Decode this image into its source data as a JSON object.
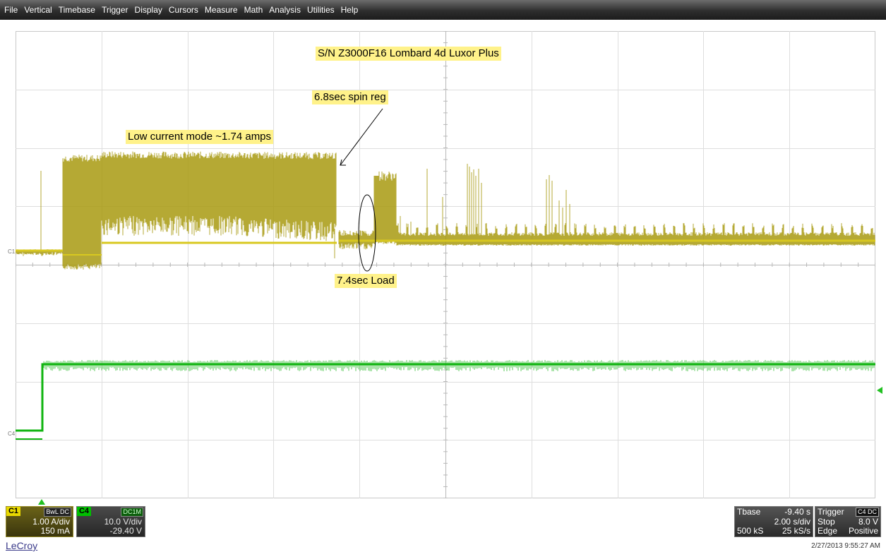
{
  "menu": [
    "File",
    "Vertical",
    "Timebase",
    "Trigger",
    "Display",
    "Cursors",
    "Measure",
    "Math",
    "Analysis",
    "Utilities",
    "Help"
  ],
  "annotations": {
    "title": "S/N Z3000F16 Lombard 4d Luxor Plus",
    "spin_reg": "6.8sec spin reg",
    "low_current": "Low current mode ~1.74 amps",
    "load": "7.4sec Load"
  },
  "grid": {
    "x_divisions": 10,
    "y_divisions": 8
  },
  "traces": {
    "c1": {
      "label": "C1",
      "color": "#a89a10"
    },
    "c4": {
      "label": "C4",
      "color": "#0fb40f"
    }
  },
  "channel_c1": {
    "tag": "C1",
    "flags": "BwL DC",
    "scale": "1.00 A/div",
    "offset": "150 mA",
    "color": "#e8d800"
  },
  "channel_c4": {
    "tag": "C4",
    "flags": "DC1M",
    "scale": "10.0 V/div",
    "offset": "-29.40 V",
    "color": "#00c000"
  },
  "timebase": {
    "label": "Tbase",
    "delay": "-9.40 s",
    "per_div": "2.00 s/div",
    "samples": "500 kS",
    "rate": "25 kS/s"
  },
  "trigger": {
    "label": "Trigger",
    "source": "C4 DC",
    "mode": "Stop",
    "level": "8.0 V",
    "type": "Edge",
    "slope": "Positive"
  },
  "footer": {
    "logo": "LeCroy",
    "timestamp": "2/27/2013 9:55:27 AM"
  }
}
